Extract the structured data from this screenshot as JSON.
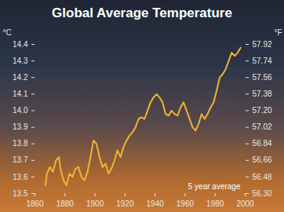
{
  "chart_data": {
    "type": "line",
    "title": "Global Average Temperature",
    "y_label": "°C",
    "y2_label": "°F",
    "annotation": "5 year average",
    "color": "#f2b233",
    "grid": false,
    "x": [
      1867,
      1868,
      1870,
      1872,
      1874,
      1876,
      1877,
      1879,
      1881,
      1883,
      1885,
      1887,
      1889,
      1891,
      1893,
      1895,
      1897,
      1899,
      1901,
      1903,
      1905,
      1907,
      1909,
      1911,
      1913,
      1915,
      1917,
      1919,
      1921,
      1923,
      1925,
      1927,
      1929,
      1931,
      1933,
      1935,
      1937,
      1939,
      1941,
      1943,
      1945,
      1947,
      1949,
      1951,
      1953,
      1955,
      1957,
      1959,
      1961,
      1963,
      1965,
      1967,
      1969,
      1971,
      1973,
      1975,
      1977,
      1979,
      1981,
      1983,
      1985,
      1987,
      1989,
      1991,
      1993,
      1995,
      1997
    ],
    "values": [
      13.55,
      13.62,
      13.66,
      13.63,
      13.7,
      13.72,
      13.65,
      13.58,
      13.55,
      13.62,
      13.6,
      13.65,
      13.66,
      13.6,
      13.58,
      13.63,
      13.72,
      13.82,
      13.8,
      13.72,
      13.66,
      13.68,
      13.62,
      13.65,
      13.7,
      13.76,
      13.72,
      13.78,
      13.82,
      13.85,
      13.87,
      13.9,
      13.95,
      13.96,
      13.95,
      14.0,
      14.05,
      14.08,
      14.1,
      14.08,
      14.05,
      13.98,
      13.97,
      14.0,
      13.98,
      13.97,
      14.02,
      14.05,
      14.0,
      13.95,
      13.9,
      13.88,
      13.92,
      13.98,
      13.95,
      13.98,
      14.02,
      14.05,
      14.12,
      14.2,
      14.22,
      14.25,
      14.3,
      14.35,
      14.33,
      14.35,
      14.38
    ],
    "xlim": [
      1860,
      2000
    ],
    "xticks": [
      1860,
      1880,
      1900,
      1920,
      1940,
      1960,
      1980,
      2000
    ],
    "ylim": [
      13.5,
      14.4
    ],
    "yticks": [
      13.5,
      13.6,
      13.7,
      13.8,
      13.9,
      {
        "value": 14,
        "label": "14.0"
      },
      14.1,
      14.2,
      14.3,
      14.4
    ],
    "y2lim": [
      56.3,
      57.92
    ],
    "y2ticks": [
      {
        "value": 56.3,
        "label": "56.30"
      },
      56.48,
      56.66,
      56.84,
      57.02,
      {
        "value": 57.2,
        "label": "57.20"
      },
      57.38,
      57.56,
      57.74,
      57.92
    ]
  }
}
